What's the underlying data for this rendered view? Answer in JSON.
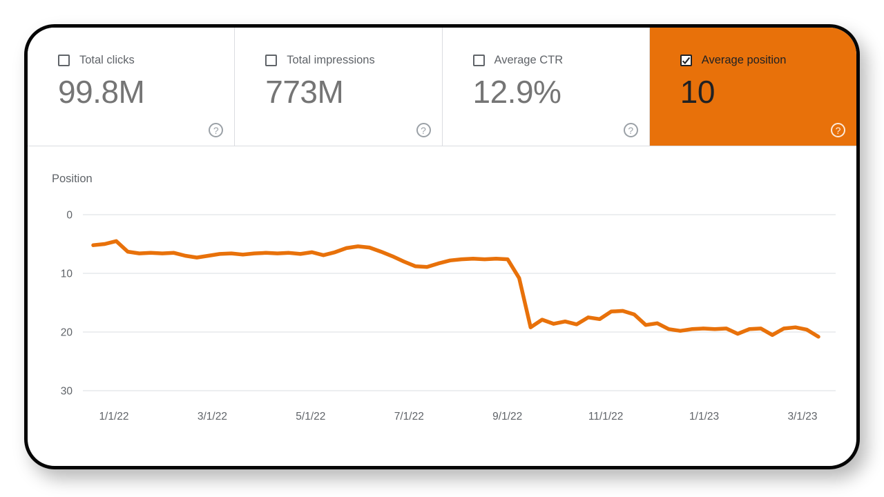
{
  "cards": [
    {
      "label": "Total clicks",
      "value": "99.8M",
      "checked": false
    },
    {
      "label": "Total impressions",
      "value": "773M",
      "checked": false
    },
    {
      "label": "Average CTR",
      "value": "12.9%",
      "checked": false
    },
    {
      "label": "Average position",
      "value": "10",
      "checked": true
    }
  ],
  "help_glyph": "?",
  "colors": {
    "accent_orange": "#e8710a",
    "label_gray": "#5f6368",
    "value_gray": "#757575",
    "grid_gray": "#dadce0"
  },
  "chart_data": {
    "type": "line",
    "title": "Position",
    "ylabel": "Position",
    "xlabel": "",
    "y_axis_inverted": true,
    "ylim": [
      0,
      30
    ],
    "y_ticks": [
      0,
      10,
      20,
      30
    ],
    "grid": true,
    "legend_position": "none",
    "x_tick_labels": [
      "1/1/22",
      "3/1/22",
      "5/1/22",
      "7/1/22",
      "9/1/22",
      "11/1/22",
      "1/1/23",
      "3/1/23"
    ],
    "series": [
      {
        "name": "Average position",
        "color": "#e8710a",
        "cadence": "weekly",
        "values": [
          5.2,
          5.0,
          4.5,
          6.3,
          6.6,
          6.5,
          6.6,
          6.5,
          7.0,
          7.3,
          7.0,
          6.7,
          6.6,
          6.8,
          6.6,
          6.5,
          6.6,
          6.5,
          6.7,
          6.4,
          6.9,
          6.4,
          5.7,
          5.4,
          5.6,
          6.3,
          7.1,
          8.0,
          8.8,
          8.9,
          8.3,
          7.8,
          7.6,
          7.5,
          7.6,
          7.5,
          7.6,
          10.8,
          19.2,
          17.9,
          18.6,
          18.2,
          18.7,
          17.5,
          17.8,
          16.5,
          16.4,
          17.0,
          18.8,
          18.5,
          19.5,
          19.8,
          19.5,
          19.4,
          19.5,
          19.4,
          20.3,
          19.5,
          19.4,
          20.5,
          19.4,
          19.2,
          19.6,
          20.8
        ]
      }
    ]
  }
}
